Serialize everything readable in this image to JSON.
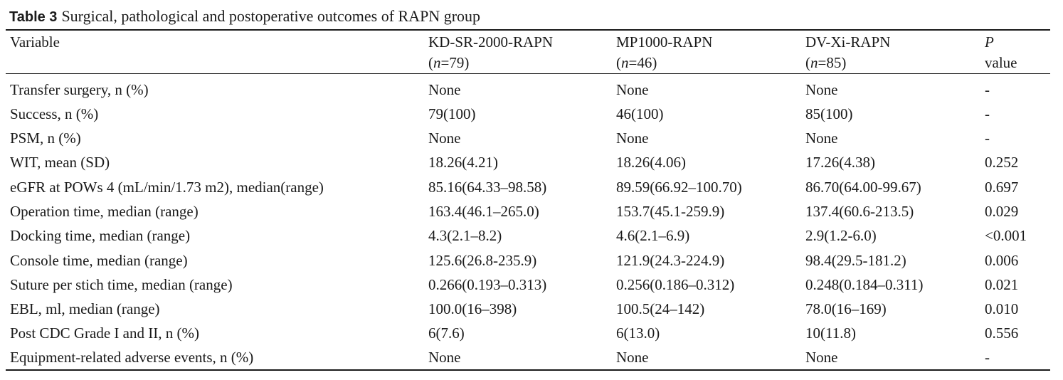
{
  "caption": {
    "label": "Table 3",
    "title": "Surgical, pathological and postoperative outcomes of RAPN group"
  },
  "header": {
    "variable": "Variable",
    "groups": [
      {
        "name": "KD-SR-2000-RAPN",
        "n_prefix": "(",
        "n_italic": "n",
        "n_suffix": "=79)"
      },
      {
        "name": "MP1000-RAPN",
        "n_prefix": "(",
        "n_italic": "n",
        "n_suffix": "=46)"
      },
      {
        "name": "DV-Xi-RAPN",
        "n_prefix": "(",
        "n_italic": "n",
        "n_suffix": "=85)"
      }
    ],
    "p_italic": "P",
    "p_word": "value"
  },
  "rows": [
    {
      "variable": "Transfer surgery, n (%)",
      "kd": "None",
      "mp": "None",
      "dv": "None",
      "p": "-"
    },
    {
      "variable": "Success, n (%)",
      "kd": "79(100)",
      "mp": "46(100)",
      "dv": "85(100)",
      "p": "-"
    },
    {
      "variable": "PSM, n (%)",
      "kd": "None",
      "mp": "None",
      "dv": "None",
      "p": "-"
    },
    {
      "variable": "WIT, mean (SD)",
      "kd": "18.26(4.21)",
      "mp": "18.26(4.06)",
      "dv": "17.26(4.38)",
      "p": "0.252"
    },
    {
      "variable": "eGFR at POWs 4 (mL/min/1.73 m2), median(range)",
      "kd": "85.16(64.33–98.58)",
      "mp": "89.59(66.92–100.70)",
      "dv": "86.70(64.00-99.67)",
      "p": "0.697"
    },
    {
      "variable": "Operation time, median (range)",
      "kd": "163.4(46.1–265.0)",
      "mp": "153.7(45.1-259.9)",
      "dv": "137.4(60.6-213.5)",
      "p": "0.029"
    },
    {
      "variable": "Docking time, median (range)",
      "kd": "4.3(2.1–8.2)",
      "mp": "4.6(2.1–6.9)",
      "dv": "2.9(1.2-6.0)",
      "p": "<0.001"
    },
    {
      "variable": "Console time, median (range)",
      "kd": "125.6(26.8-235.9)",
      "mp": "121.9(24.3-224.9)",
      "dv": "98.4(29.5-181.2)",
      "p": "0.006"
    },
    {
      "variable": "Suture per stich time, median (range)",
      "kd": "0.266(0.193–0.313)",
      "mp": "0.256(0.186–0.312)",
      "dv": "0.248(0.184–0.311)",
      "p": "0.021"
    },
    {
      "variable": "EBL, ml, median (range)",
      "kd": "100.0(16–398)",
      "mp": "100.5(24–142)",
      "dv": "78.0(16–169)",
      "p": "0.010"
    },
    {
      "variable": "Post CDC Grade I and II, n (%)",
      "kd": "6(7.6)",
      "mp": "6(13.0)",
      "dv": "10(11.8)",
      "p": "0.556"
    },
    {
      "variable": "Equipment-related adverse events, n (%)",
      "kd": "None",
      "mp": "None",
      "dv": "None",
      "p": "-"
    }
  ]
}
